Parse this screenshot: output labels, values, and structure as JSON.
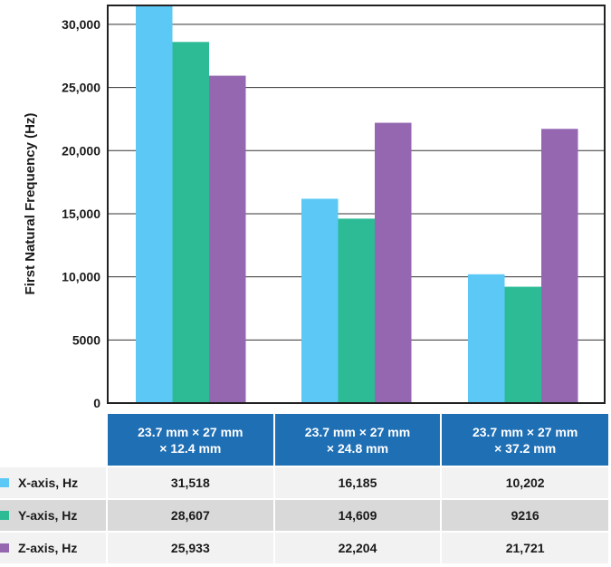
{
  "chart_data": {
    "type": "bar",
    "title": "",
    "xlabel": "",
    "ylabel": "First Natural Frequency (Hz)",
    "ylim": [
      0,
      31500
    ],
    "yticks": [
      0,
      5000,
      10000,
      15000,
      20000,
      25000,
      30000
    ],
    "ytick_labels": [
      "0",
      "5000",
      "10,000",
      "15,000",
      "20,000",
      "25,000",
      "30,000"
    ],
    "grid": true,
    "categories": [
      "23.7 mm × 27 mm\n× 12.4 mm",
      "23.7 mm × 27 mm\n× 24.8 mm",
      "23.7 mm × 27 mm\n× 37.2 mm"
    ],
    "series": [
      {
        "name": "X-axis, Hz",
        "color": "#5bc8f5",
        "values": [
          31518,
          16185,
          10202
        ],
        "labels": [
          "31,518",
          "16,185",
          "10,202"
        ]
      },
      {
        "name": "Y-axis, Hz",
        "color": "#2dbb96",
        "values": [
          28607,
          14609,
          9216
        ],
        "labels": [
          "28,607",
          "14,609",
          "9216"
        ]
      },
      {
        "name": "Z-axis, Hz",
        "color": "#9467b0",
        "values": [
          25933,
          22204,
          21721
        ],
        "labels": [
          "25,933",
          "22,204",
          "21,721"
        ]
      }
    ]
  },
  "colors": {
    "header": "#1f6fb5",
    "row_light": "#f2f2f2",
    "row_dark": "#d9d9d9"
  }
}
